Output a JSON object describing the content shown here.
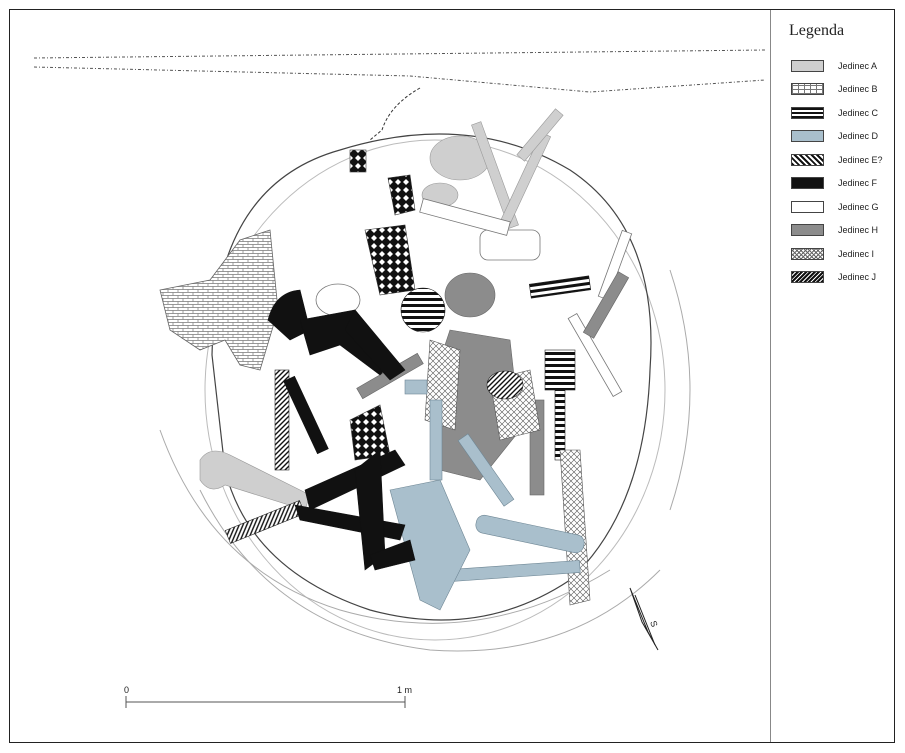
{
  "legend": {
    "title": "Legenda",
    "items": [
      {
        "label": "Jedinec A",
        "fill": "#cfcfcf",
        "pattern": "solid"
      },
      {
        "label": "Jedinec B",
        "fill": "#ffffff",
        "pattern": "brick"
      },
      {
        "label": "Jedinec C",
        "fill": "#ffffff",
        "pattern": "hstripes"
      },
      {
        "label": "Jedinec D",
        "fill": "#a9bfcc",
        "pattern": "solid"
      },
      {
        "label": "Jedinec E?",
        "fill": "#ffffff",
        "pattern": "checker"
      },
      {
        "label": "Jedinec F",
        "fill": "#111111",
        "pattern": "solid"
      },
      {
        "label": "Jedinec G",
        "fill": "#ffffff",
        "pattern": "solid"
      },
      {
        "label": "Jedinec H",
        "fill": "#8c8c8c",
        "pattern": "solid"
      },
      {
        "label": "Jedinec I",
        "fill": "#ffffff",
        "pattern": "crosshatch"
      },
      {
        "label": "Jedinec J",
        "fill": "#ffffff",
        "pattern": "diagonal"
      }
    ]
  },
  "scale": {
    "start_label": "0",
    "end_label": "1 m"
  },
  "north_arrow": {
    "label": "S"
  }
}
